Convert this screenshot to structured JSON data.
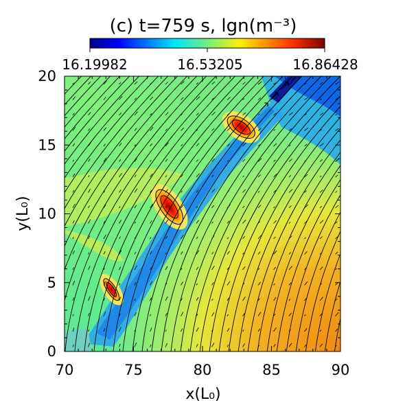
{
  "chart_data": {
    "type": "heatmap",
    "title": "(c) t=759 s, lgn(m⁻³)",
    "xlabel": "x(L₀)",
    "ylabel": "y(L₀)",
    "xlim": [
      70,
      90
    ],
    "ylim": [
      0,
      20
    ],
    "x_ticks": [
      "70",
      "75",
      "80",
      "85",
      "90"
    ],
    "y_ticks": [
      "0",
      "5",
      "10",
      "15",
      "20"
    ],
    "colorbar": {
      "min": 16.19982,
      "mid": 16.53205,
      "max": 16.86428,
      "tick_labels": [
        "16.19982",
        "16.53205",
        "16.86428"
      ],
      "colormap": "jet"
    },
    "overlays": [
      "magnetic field lines",
      "velocity vectors"
    ],
    "features": [
      {
        "name": "plasmoid-1",
        "x": 73.4,
        "y": 4.5,
        "level": "high"
      },
      {
        "name": "plasmoid-2",
        "x": 77.6,
        "y": 10.5,
        "level": "high"
      },
      {
        "name": "plasmoid-3",
        "x": 82.8,
        "y": 16.3,
        "level": "high"
      }
    ]
  }
}
